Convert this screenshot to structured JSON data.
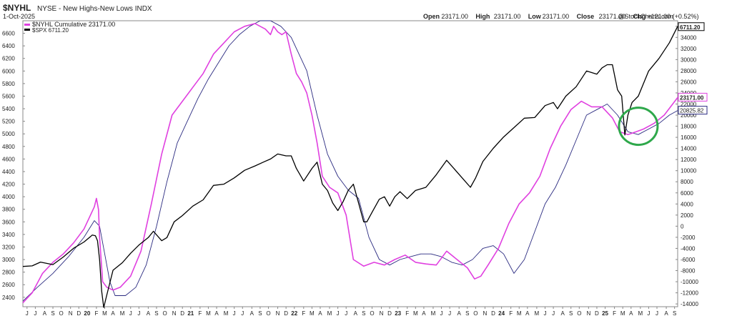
{
  "header": {
    "symbol": "$NYHL",
    "name": "NYSE - New Highs-New Lows INDX",
    "date": "1-Oct-2025",
    "ohlc": [
      {
        "label": "Open",
        "value": "23171.00"
      },
      {
        "label": "High",
        "value": "23171.00"
      },
      {
        "label": "Low",
        "value": "23171.00"
      },
      {
        "label": "Close",
        "value": "23171.00"
      },
      {
        "label": "Chg",
        "value": "+121.00 (+0.52%)"
      }
    ],
    "watermark": "@StockCharts.com"
  },
  "chart_data": {
    "type": "line",
    "legend": [
      {
        "name": "$NYHL Cumulative 23171.00",
        "color": "#e040e0"
      },
      {
        "name": "$SPX 6711.20",
        "color": "#000000"
      }
    ],
    "x_range": [
      2019.46,
      2025.78
    ],
    "left_axis": {
      "ylim": [
        2250,
        6800
      ],
      "ticks": [
        2400,
        2600,
        2800,
        3000,
        3200,
        3400,
        3600,
        3800,
        4000,
        4200,
        4400,
        4600,
        4800,
        5000,
        5200,
        5400,
        5600,
        5800,
        6000,
        6200,
        6400,
        6600
      ]
    },
    "right_axis": {
      "ylim": [
        -14500,
        37000
      ],
      "ticks": [
        -14000,
        -12000,
        -10000,
        -8000,
        -6000,
        -4000,
        -2000,
        0,
        2000,
        4000,
        6000,
        8000,
        10000,
        12000,
        14000,
        16000,
        18000,
        20000,
        22000,
        24000,
        26000,
        28000,
        30000,
        32000,
        34000,
        36000
      ]
    },
    "x_labels": [
      {
        "x": 2019.5,
        "label": "J"
      },
      {
        "x": 2019.58,
        "label": "J"
      },
      {
        "x": 2019.67,
        "label": "A"
      },
      {
        "x": 2019.75,
        "label": "S"
      },
      {
        "x": 2019.83,
        "label": "O"
      },
      {
        "x": 2019.92,
        "label": "N"
      },
      {
        "x": 2020.0,
        "label": "D"
      },
      {
        "x": 2020.08,
        "label": "20",
        "bold": true
      },
      {
        "x": 2020.17,
        "label": "F"
      },
      {
        "x": 2020.25,
        "label": "M"
      },
      {
        "x": 2020.33,
        "label": "A"
      },
      {
        "x": 2020.42,
        "label": "M"
      },
      {
        "x": 2020.5,
        "label": "J"
      },
      {
        "x": 2020.58,
        "label": "J"
      },
      {
        "x": 2020.67,
        "label": "A"
      },
      {
        "x": 2020.75,
        "label": "S"
      },
      {
        "x": 2020.83,
        "label": "O"
      },
      {
        "x": 2020.92,
        "label": "N"
      },
      {
        "x": 2021.0,
        "label": "D"
      },
      {
        "x": 2021.08,
        "label": "21",
        "bold": true
      },
      {
        "x": 2021.17,
        "label": "F"
      },
      {
        "x": 2021.25,
        "label": "M"
      },
      {
        "x": 2021.33,
        "label": "A"
      },
      {
        "x": 2021.42,
        "label": "M"
      },
      {
        "x": 2021.5,
        "label": "J"
      },
      {
        "x": 2021.58,
        "label": "J"
      },
      {
        "x": 2021.67,
        "label": "A"
      },
      {
        "x": 2021.75,
        "label": "S"
      },
      {
        "x": 2021.83,
        "label": "O"
      },
      {
        "x": 2021.92,
        "label": "N"
      },
      {
        "x": 2022.0,
        "label": "D"
      },
      {
        "x": 2022.08,
        "label": "22",
        "bold": true
      },
      {
        "x": 2022.17,
        "label": "F"
      },
      {
        "x": 2022.25,
        "label": "M"
      },
      {
        "x": 2022.33,
        "label": "A"
      },
      {
        "x": 2022.42,
        "label": "M"
      },
      {
        "x": 2022.5,
        "label": "J"
      },
      {
        "x": 2022.58,
        "label": "J"
      },
      {
        "x": 2022.67,
        "label": "A"
      },
      {
        "x": 2022.75,
        "label": "S"
      },
      {
        "x": 2022.83,
        "label": "O"
      },
      {
        "x": 2022.92,
        "label": "N"
      },
      {
        "x": 2023.0,
        "label": "D"
      },
      {
        "x": 2023.08,
        "label": "23",
        "bold": true
      },
      {
        "x": 2023.17,
        "label": "F"
      },
      {
        "x": 2023.25,
        "label": "M"
      },
      {
        "x": 2023.33,
        "label": "A"
      },
      {
        "x": 2023.42,
        "label": "M"
      },
      {
        "x": 2023.5,
        "label": "J"
      },
      {
        "x": 2023.58,
        "label": "J"
      },
      {
        "x": 2023.67,
        "label": "A"
      },
      {
        "x": 2023.75,
        "label": "S"
      },
      {
        "x": 2023.83,
        "label": "O"
      },
      {
        "x": 2023.92,
        "label": "N"
      },
      {
        "x": 2024.0,
        "label": "D"
      },
      {
        "x": 2024.08,
        "label": "24",
        "bold": true
      },
      {
        "x": 2024.17,
        "label": "F"
      },
      {
        "x": 2024.25,
        "label": "M"
      },
      {
        "x": 2024.33,
        "label": "A"
      },
      {
        "x": 2024.42,
        "label": "M"
      },
      {
        "x": 2024.5,
        "label": "J"
      },
      {
        "x": 2024.58,
        "label": "J"
      },
      {
        "x": 2024.67,
        "label": "A"
      },
      {
        "x": 2024.75,
        "label": "S"
      },
      {
        "x": 2024.83,
        "label": "O"
      },
      {
        "x": 2024.92,
        "label": "N"
      },
      {
        "x": 2025.0,
        "label": "D"
      },
      {
        "x": 2025.08,
        "label": "25",
        "bold": true
      },
      {
        "x": 2025.17,
        "label": "F"
      },
      {
        "x": 2025.25,
        "label": "M"
      },
      {
        "x": 2025.33,
        "label": "A"
      },
      {
        "x": 2025.42,
        "label": "M"
      },
      {
        "x": 2025.5,
        "label": "J"
      },
      {
        "x": 2025.58,
        "label": "J"
      },
      {
        "x": 2025.67,
        "label": "A"
      },
      {
        "x": 2025.75,
        "label": "S"
      },
      {
        "x": 2025.83,
        "label": "O"
      }
    ],
    "series": [
      {
        "name": "$SPX",
        "axis": "left",
        "color": "#000000",
        "x": [
          2019.46,
          2019.55,
          2019.63,
          2019.75,
          2019.85,
          2019.95,
          2020.05,
          2020.13,
          2020.16,
          2020.18,
          2020.2,
          2020.22,
          2020.24,
          2020.28,
          2020.33,
          2020.42,
          2020.5,
          2020.58,
          2020.67,
          2020.72,
          2020.8,
          2020.85,
          2020.92,
          2021.0,
          2021.1,
          2021.2,
          2021.3,
          2021.4,
          2021.5,
          2021.6,
          2021.7,
          2021.78,
          2021.85,
          2021.92,
          2022.0,
          2022.05,
          2022.1,
          2022.17,
          2022.25,
          2022.3,
          2022.35,
          2022.4,
          2022.45,
          2022.5,
          2022.55,
          2022.6,
          2022.65,
          2022.7,
          2022.75,
          2022.78,
          2022.83,
          2022.9,
          2022.95,
          2023.0,
          2023.05,
          2023.1,
          2023.17,
          2023.25,
          2023.35,
          2023.45,
          2023.55,
          2023.62,
          2023.7,
          2023.78,
          2023.83,
          2023.9,
          2024.0,
          2024.1,
          2024.2,
          2024.3,
          2024.4,
          2024.5,
          2024.58,
          2024.62,
          2024.7,
          2024.8,
          2024.9,
          2025.0,
          2025.05,
          2025.1,
          2025.15,
          2025.2,
          2025.24,
          2025.27,
          2025.3,
          2025.34,
          2025.4,
          2025.5,
          2025.6,
          2025.7,
          2025.78
        ],
        "values": [
          2890,
          2900,
          2960,
          2920,
          3040,
          3180,
          3280,
          3390,
          3380,
          3300,
          3000,
          2500,
          2237,
          2500,
          2830,
          2950,
          3100,
          3230,
          3350,
          3450,
          3300,
          3350,
          3600,
          3700,
          3850,
          3950,
          4180,
          4200,
          4300,
          4420,
          4490,
          4550,
          4600,
          4680,
          4650,
          4650,
          4450,
          4250,
          4450,
          4550,
          4200,
          4100,
          3900,
          3780,
          3920,
          4100,
          4200,
          3900,
          3600,
          3600,
          3750,
          3960,
          4000,
          3850,
          4000,
          4080,
          3970,
          4100,
          4150,
          4350,
          4580,
          4450,
          4300,
          4150,
          4300,
          4560,
          4770,
          4950,
          5100,
          5250,
          5260,
          5450,
          5500,
          5400,
          5600,
          5750,
          6000,
          5950,
          6050,
          6100,
          6100,
          5700,
          5600,
          4982,
          5300,
          5500,
          5600,
          6000,
          6200,
          6450,
          6711
        ]
      },
      {
        "name": "$NYHL Cumulative",
        "axis": "right",
        "color": "#e040e0",
        "x": [
          2019.46,
          2019.55,
          2019.65,
          2019.75,
          2019.85,
          2019.95,
          2020.05,
          2020.1,
          2020.15,
          2020.17,
          2020.19,
          2020.2,
          2020.23,
          2020.27,
          2020.33,
          2020.4,
          2020.5,
          2020.6,
          2020.7,
          2020.8,
          2020.9,
          2021.0,
          2021.1,
          2021.2,
          2021.3,
          2021.4,
          2021.5,
          2021.6,
          2021.7,
          2021.8,
          2021.85,
          2021.88,
          2021.92,
          2021.96,
          2022.0,
          2022.05,
          2022.1,
          2022.15,
          2022.2,
          2022.25,
          2022.3,
          2022.35,
          2022.42,
          2022.5,
          2022.58,
          2022.65,
          2022.75,
          2022.85,
          2022.95,
          2023.05,
          2023.15,
          2023.25,
          2023.35,
          2023.45,
          2023.55,
          2023.65,
          2023.75,
          2023.82,
          2023.88,
          2023.95,
          2024.05,
          2024.15,
          2024.25,
          2024.35,
          2024.45,
          2024.55,
          2024.65,
          2024.75,
          2024.85,
          2024.95,
          2025.05,
          2025.15,
          2025.22,
          2025.3,
          2025.38,
          2025.45,
          2025.55,
          2025.65,
          2025.78
        ],
        "values": [
          -13800,
          -12000,
          -8500,
          -6500,
          -5000,
          -3000,
          -500,
          1500,
          3500,
          5000,
          3000,
          -2000,
          -10000,
          -11000,
          -11500,
          -11000,
          -9000,
          -4500,
          4000,
          13000,
          20000,
          22500,
          25000,
          27500,
          31000,
          33000,
          35000,
          36000,
          36500,
          35500,
          34500,
          36000,
          35000,
          34500,
          35000,
          31000,
          27500,
          26000,
          24000,
          20000,
          15000,
          9000,
          7000,
          6000,
          2000,
          -6000,
          -7200,
          -6500,
          -7000,
          -6000,
          -5200,
          -6500,
          -6800,
          -7000,
          -4500,
          -6000,
          -7500,
          -9500,
          -9000,
          -7000,
          -4000,
          500,
          4000,
          6000,
          9000,
          14000,
          18000,
          21000,
          22500,
          21500,
          21500,
          19500,
          17000,
          16500,
          17000,
          17500,
          18500,
          20000,
          23171
        ]
      },
      {
        "name": "Moving average",
        "axis": "right",
        "color": "#2a2a80",
        "x": [
          2019.46,
          2019.6,
          2019.75,
          2019.9,
          2020.05,
          2020.15,
          2020.2,
          2020.25,
          2020.3,
          2020.35,
          2020.45,
          2020.55,
          2020.65,
          2020.75,
          2020.85,
          2020.95,
          2021.05,
          2021.15,
          2021.25,
          2021.35,
          2021.45,
          2021.55,
          2021.65,
          2021.75,
          2021.85,
          2021.95,
          2022.0,
          2022.05,
          2022.1,
          2022.2,
          2022.3,
          2022.4,
          2022.5,
          2022.6,
          2022.7,
          2022.8,
          2022.9,
          2023.0,
          2023.1,
          2023.2,
          2023.3,
          2023.4,
          2023.5,
          2023.6,
          2023.7,
          2023.8,
          2023.9,
          2024.0,
          2024.1,
          2024.2,
          2024.3,
          2024.4,
          2024.5,
          2024.6,
          2024.7,
          2024.8,
          2024.9,
          2025.0,
          2025.1,
          2025.2,
          2025.3,
          2025.4,
          2025.5,
          2025.6,
          2025.7,
          2025.78
        ],
        "values": [
          -13500,
          -11000,
          -8500,
          -5500,
          -2000,
          1000,
          0,
          -5000,
          -10000,
          -12500,
          -12500,
          -11000,
          -7000,
          0,
          8000,
          15000,
          19000,
          23000,
          26500,
          29500,
          32500,
          34500,
          36000,
          37000,
          37000,
          36000,
          35000,
          34000,
          32000,
          28000,
          20000,
          13000,
          9000,
          6500,
          5000,
          -2000,
          -6000,
          -7000,
          -6000,
          -5500,
          -5000,
          -5000,
          -5500,
          -6500,
          -7000,
          -6000,
          -4000,
          -3500,
          -5000,
          -8500,
          -6000,
          -1000,
          4000,
          7000,
          11000,
          15500,
          20000,
          21000,
          22000,
          20000,
          17000,
          16500,
          17500,
          18500,
          20000,
          20826
        ]
      }
    ],
    "right_markers": [
      {
        "label": "23171.00",
        "value": 23171,
        "style": "magenta"
      },
      {
        "label": "20825.82",
        "value": 20826,
        "style": "navy"
      }
    ],
    "left_marker": {
      "label": "6711.20",
      "value": 6711
    },
    "annotation": {
      "type": "circle",
      "color": "#2ea84b",
      "x": 2025.4,
      "value": 18000
    }
  }
}
